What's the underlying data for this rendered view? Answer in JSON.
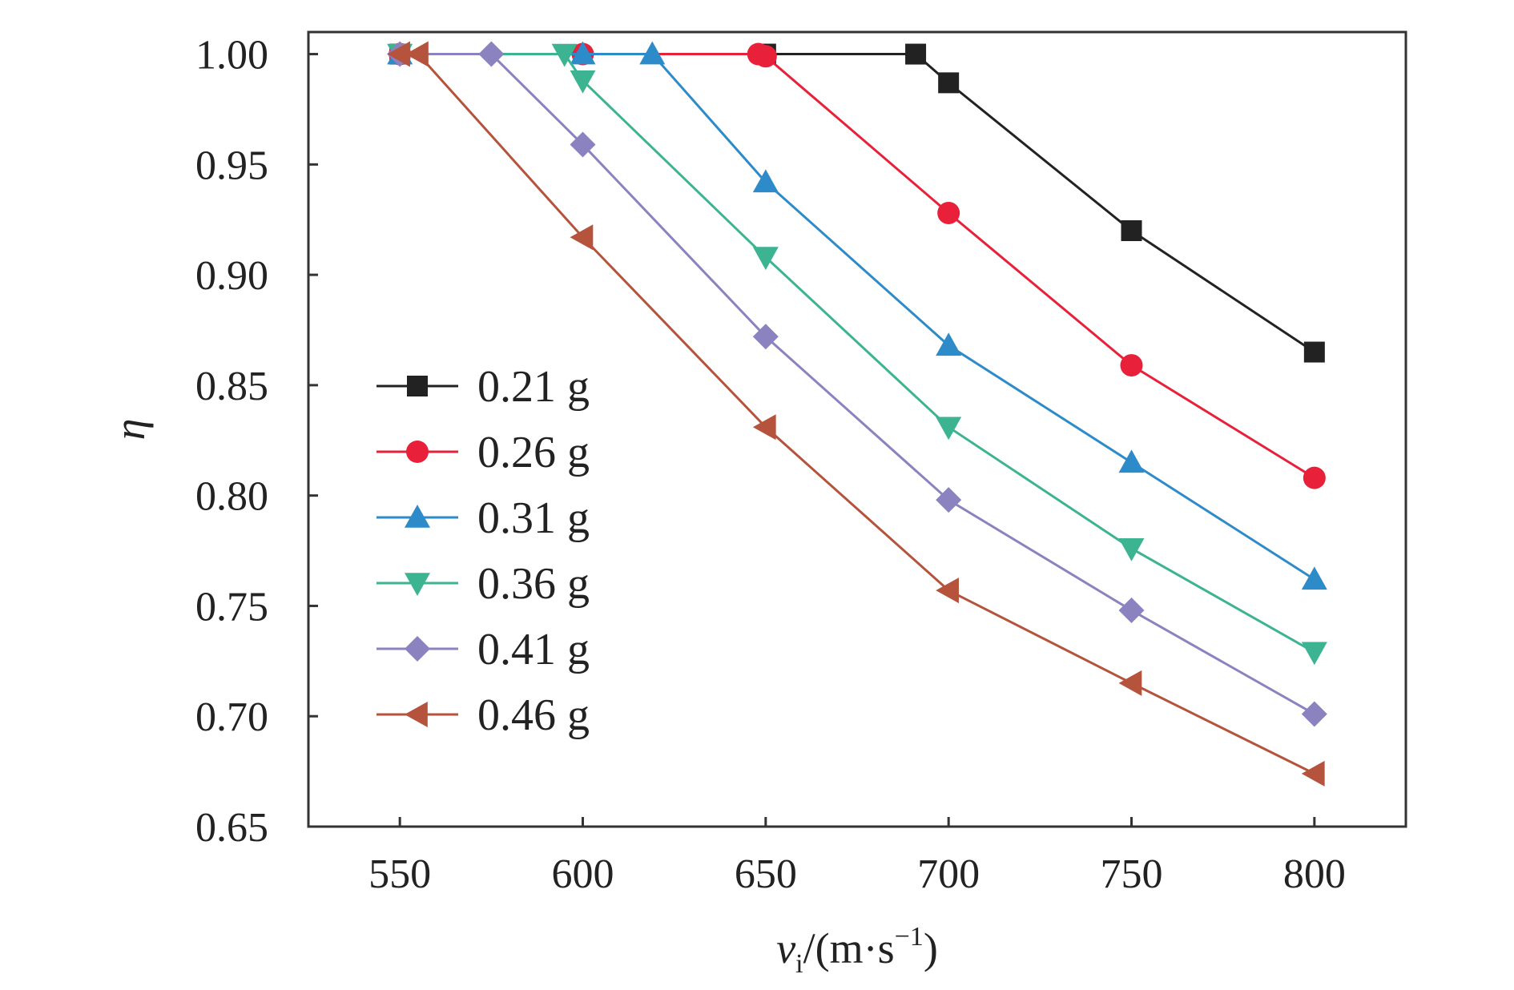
{
  "chart_data": {
    "type": "line",
    "xlabel": {
      "symbol": "v",
      "subscript": "i",
      "unit_open": "/(m·s",
      "superscript": "−1",
      "unit_close": ")"
    },
    "ylabel": "η",
    "xlim": [
      525,
      825
    ],
    "ylim": [
      0.65,
      1.01
    ],
    "xticks": [
      550,
      600,
      650,
      700,
      750,
      800
    ],
    "xtick_labels": [
      "550",
      "600",
      "650",
      "700",
      "750",
      "800"
    ],
    "yticks": [
      0.65,
      0.7,
      0.75,
      0.8,
      0.85,
      0.9,
      0.95,
      1.0
    ],
    "ytick_labels": [
      "0.65",
      "0.70",
      "0.75",
      "0.80",
      "0.85",
      "0.90",
      "0.95",
      "1.00"
    ],
    "grid": false,
    "legend_position": "left",
    "series": [
      {
        "name": "0.21 g",
        "color": "#222222",
        "marker": "square",
        "x": [
          550,
          650,
          691,
          700,
          750,
          800
        ],
        "y": [
          1.0,
          1.0,
          1.0,
          0.987,
          0.92,
          0.865
        ]
      },
      {
        "name": "0.26 g",
        "color": "#e8203a",
        "marker": "circle",
        "x": [
          550,
          600,
          648,
          650,
          700,
          750,
          800
        ],
        "y": [
          1.0,
          1.0,
          1.0,
          0.999,
          0.928,
          0.859,
          0.808
        ]
      },
      {
        "name": "0.31 g",
        "color": "#2e8bc9",
        "marker": "triangle-up",
        "x": [
          550,
          600,
          619,
          650,
          700,
          750,
          800
        ],
        "y": [
          1.0,
          1.0,
          1.0,
          0.942,
          0.868,
          0.815,
          0.762
        ]
      },
      {
        "name": "0.36 g",
        "color": "#3cb391",
        "marker": "triangle-down",
        "x": [
          550,
          595,
          600,
          650,
          700,
          750,
          800
        ],
        "y": [
          1.0,
          1.0,
          0.988,
          0.908,
          0.831,
          0.776,
          0.729
        ]
      },
      {
        "name": "0.41 g",
        "color": "#8b82c0",
        "marker": "diamond",
        "x": [
          550,
          575,
          600,
          650,
          700,
          750,
          800
        ],
        "y": [
          1.0,
          1.0,
          0.959,
          0.872,
          0.798,
          0.748,
          0.701
        ]
      },
      {
        "name": "0.46 g",
        "color": "#b5533c",
        "marker": "triangle-left",
        "x": [
          550,
          555,
          600,
          650,
          700,
          750,
          800
        ],
        "y": [
          1.0,
          1.0,
          0.917,
          0.831,
          0.757,
          0.715,
          0.674
        ]
      }
    ]
  }
}
